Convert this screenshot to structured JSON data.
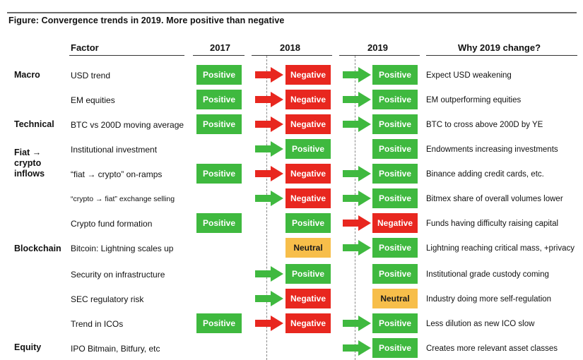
{
  "title": "Figure: Convergence trends in 2019.  More positive than negative",
  "headers": {
    "factor": "Factor",
    "y2017": "2017",
    "y2018": "2018",
    "y2019": "2019",
    "why": "Why 2019 change?"
  },
  "categories": [
    "Macro",
    "Technical",
    "Fiat → crypto inflows",
    "Blockchain",
    "Equity"
  ],
  "colors": {
    "positive": "#3fb93f",
    "negative": "#e8271f",
    "neutral": "#f7be4a",
    "arrow_green": "#3fb93f",
    "arrow_red": "#e8271f"
  },
  "rows": [
    {
      "factor": "USD trend",
      "v2017": "Positive",
      "v2018": "Negative",
      "v2019": "Positive",
      "why": "Expect USD weakening"
    },
    {
      "factor": "EM equities",
      "v2017": "Positive",
      "v2018": "Negative",
      "v2019": "Positive",
      "why": "EM outperforming equities"
    },
    {
      "factor": "BTC vs 200D moving average",
      "v2017": "Positive",
      "v2018": "Negative",
      "v2019": "Positive",
      "why": "BTC to cross above 200D by YE"
    },
    {
      "factor": "Institutional investment",
      "v2017": "",
      "v2018": "Positive",
      "v2019": "Positive",
      "why": "Endowments increasing investments"
    },
    {
      "factor": "“fiat → crypto” on-ramps",
      "v2017": "Positive",
      "v2018": "Negative",
      "v2019": "Positive",
      "why": "Binance adding credit cards, etc."
    },
    {
      "factor": "“crypto → fiat” exchange selling",
      "v2017": "",
      "v2018": "Negative",
      "v2019": "Positive",
      "why": "Bitmex share of overall volumes lower"
    },
    {
      "factor": "Crypto fund formation",
      "v2017": "Positive",
      "v2018": "Positive",
      "v2019": "Negative",
      "why": "Funds having difficulty raising capital"
    },
    {
      "factor": "Bitcoin: Lightning scales up",
      "v2017": "",
      "v2018": "Neutral",
      "v2019": "Positive",
      "why": "Lightning reaching critical mass, +privacy"
    },
    {
      "factor": "Security on infrastructure",
      "v2017": "",
      "v2018": "Positive",
      "v2019": "Positive",
      "why": "Institutional grade custody coming"
    },
    {
      "factor": "SEC regulatory risk",
      "v2017": "",
      "v2018": "Negative",
      "v2019": "Neutral",
      "why": "Industry doing more self-regulation"
    },
    {
      "factor": "Trend in ICOs",
      "v2017": "Positive",
      "v2018": "Negative",
      "v2019": "Positive",
      "why": "Less dilution as new ICO slow"
    },
    {
      "factor": "IPO Bitmain, Bitfury, etc",
      "v2017": "",
      "v2018": "",
      "v2019": "Positive",
      "why": "Creates more relevant asset classes"
    }
  ]
}
